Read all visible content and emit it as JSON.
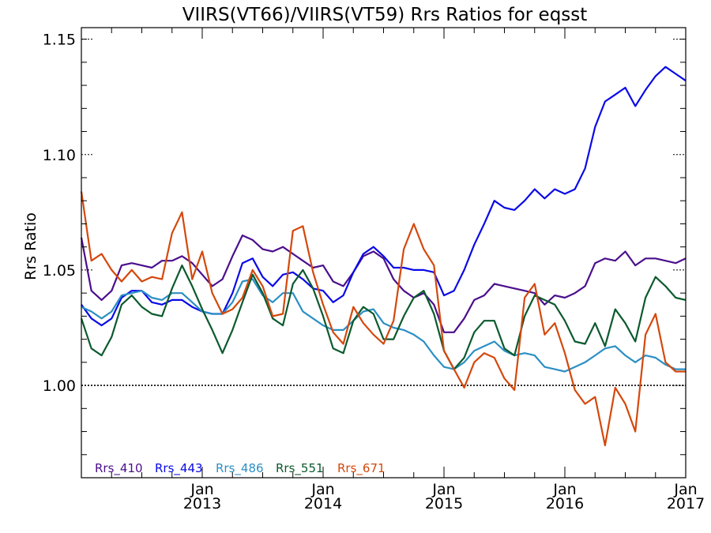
{
  "chart_data": {
    "type": "line",
    "title": "VIIRS(VT66)/VIIRS(VT59)  Rrs Ratios for eqsst",
    "ylabel": "Rrs Ratio",
    "xlabel": "",
    "ylim": [
      0.96,
      1.155
    ],
    "xlim": [
      2012.0,
      2017.0
    ],
    "yticks": [
      {
        "value": 1.0,
        "label": "1.00"
      },
      {
        "value": 1.05,
        "label": "1.05"
      },
      {
        "value": 1.1,
        "label": "1.10"
      },
      {
        "value": 1.15,
        "label": "1.15"
      }
    ],
    "xticks": [
      {
        "value": 2013.0,
        "month": "Jan",
        "year": "2013"
      },
      {
        "value": 2014.0,
        "month": "Jan",
        "year": "2014"
      },
      {
        "value": 2015.0,
        "month": "Jan",
        "year": "2015"
      },
      {
        "value": 2016.0,
        "month": "Jan",
        "year": "2016"
      },
      {
        "value": 2017.0,
        "month": "Jan",
        "year": "2017"
      }
    ],
    "reference_line": {
      "value": 1.0,
      "style": "dotted"
    },
    "x": [
      2012.0,
      2012.083,
      2012.167,
      2012.25,
      2012.333,
      2012.417,
      2012.5,
      2012.583,
      2012.667,
      2012.75,
      2012.833,
      2012.917,
      2013.0,
      2013.083,
      2013.167,
      2013.25,
      2013.333,
      2013.417,
      2013.5,
      2013.583,
      2013.667,
      2013.75,
      2013.833,
      2013.917,
      2014.0,
      2014.083,
      2014.167,
      2014.25,
      2014.333,
      2014.417,
      2014.5,
      2014.583,
      2014.667,
      2014.75,
      2014.833,
      2014.917,
      2015.0,
      2015.083,
      2015.167,
      2015.25,
      2015.333,
      2015.417,
      2015.5,
      2015.583,
      2015.667,
      2015.75,
      2015.833,
      2015.917,
      2016.0,
      2016.083,
      2016.167,
      2016.25,
      2016.333,
      2016.417,
      2016.5,
      2016.583,
      2016.667,
      2016.75,
      2016.833,
      2016.917,
      2017.0
    ],
    "series": [
      {
        "name": "Rrs_410",
        "color": "#4b0f8c",
        "values": [
          1.064,
          1.041,
          1.037,
          1.041,
          1.052,
          1.053,
          1.052,
          1.051,
          1.054,
          1.054,
          1.056,
          1.053,
          1.048,
          1.043,
          1.046,
          1.056,
          1.065,
          1.063,
          1.059,
          1.058,
          1.06,
          1.057,
          1.054,
          1.051,
          1.052,
          1.045,
          1.043,
          1.049,
          1.056,
          1.058,
          1.055,
          1.046,
          1.041,
          1.038,
          1.04,
          1.035,
          1.023,
          1.023,
          1.029,
          1.037,
          1.039,
          1.044,
          1.043,
          1.042,
          1.041,
          1.04,
          1.035,
          1.039,
          1.038,
          1.04,
          1.043,
          1.053,
          1.055,
          1.054,
          1.058,
          1.052,
          1.055,
          1.055,
          1.054,
          1.053,
          1.055
        ]
      },
      {
        "name": "Rrs_443",
        "color": "#0a0ae6",
        "values": [
          1.035,
          1.029,
          1.026,
          1.029,
          1.038,
          1.041,
          1.041,
          1.036,
          1.035,
          1.037,
          1.037,
          1.034,
          1.032,
          1.031,
          1.031,
          1.04,
          1.053,
          1.055,
          1.047,
          1.043,
          1.048,
          1.049,
          1.046,
          1.042,
          1.041,
          1.036,
          1.039,
          1.049,
          1.057,
          1.06,
          1.056,
          1.051,
          1.051,
          1.05,
          1.05,
          1.049,
          1.039,
          1.041,
          1.05,
          1.061,
          1.07,
          1.08,
          1.077,
          1.076,
          1.08,
          1.085,
          1.081,
          1.085,
          1.083,
          1.085,
          1.094,
          1.112,
          1.123,
          1.126,
          1.129,
          1.121,
          1.128,
          1.134,
          1.138,
          1.135,
          1.132
        ]
      },
      {
        "name": "Rrs_486",
        "color": "#2b8fc4",
        "values": [
          1.034,
          1.032,
          1.029,
          1.032,
          1.039,
          1.04,
          1.041,
          1.038,
          1.037,
          1.04,
          1.04,
          1.036,
          1.032,
          1.031,
          1.031,
          1.036,
          1.045,
          1.046,
          1.039,
          1.036,
          1.04,
          1.04,
          1.032,
          1.029,
          1.026,
          1.024,
          1.024,
          1.028,
          1.032,
          1.033,
          1.027,
          1.025,
          1.024,
          1.022,
          1.019,
          1.013,
          1.008,
          1.007,
          1.01,
          1.015,
          1.017,
          1.019,
          1.015,
          1.013,
          1.014,
          1.013,
          1.008,
          1.007,
          1.006,
          1.008,
          1.01,
          1.013,
          1.016,
          1.017,
          1.013,
          1.01,
          1.013,
          1.012,
          1.009,
          1.007,
          1.007
        ]
      },
      {
        "name": "Rrs_551",
        "color": "#0b5a2e",
        "values": [
          1.029,
          1.016,
          1.013,
          1.021,
          1.035,
          1.039,
          1.034,
          1.031,
          1.03,
          1.042,
          1.052,
          1.043,
          1.033,
          1.024,
          1.014,
          1.024,
          1.036,
          1.048,
          1.04,
          1.029,
          1.026,
          1.044,
          1.05,
          1.042,
          1.03,
          1.016,
          1.014,
          1.028,
          1.034,
          1.031,
          1.02,
          1.02,
          1.03,
          1.038,
          1.041,
          1.031,
          1.015,
          1.007,
          1.012,
          1.023,
          1.028,
          1.028,
          1.016,
          1.013,
          1.03,
          1.039,
          1.037,
          1.035,
          1.028,
          1.019,
          1.018,
          1.027,
          1.017,
          1.033,
          1.027,
          1.019,
          1.038,
          1.047,
          1.043,
          1.038,
          1.037
        ]
      },
      {
        "name": "Rrs_671",
        "color": "#d4480c",
        "values": [
          1.084,
          1.054,
          1.057,
          1.05,
          1.045,
          1.05,
          1.045,
          1.047,
          1.046,
          1.066,
          1.075,
          1.046,
          1.058,
          1.04,
          1.031,
          1.033,
          1.038,
          1.05,
          1.043,
          1.03,
          1.031,
          1.067,
          1.069,
          1.049,
          1.035,
          1.023,
          1.018,
          1.034,
          1.027,
          1.022,
          1.018,
          1.028,
          1.059,
          1.07,
          1.059,
          1.052,
          1.015,
          1.007,
          0.999,
          1.01,
          1.014,
          1.012,
          1.003,
          0.998,
          1.038,
          1.044,
          1.022,
          1.027,
          1.014,
          0.998,
          0.992,
          0.995,
          0.974,
          0.999,
          0.992,
          0.98,
          1.022,
          1.031,
          1.01,
          1.006,
          1.006
        ]
      }
    ]
  }
}
